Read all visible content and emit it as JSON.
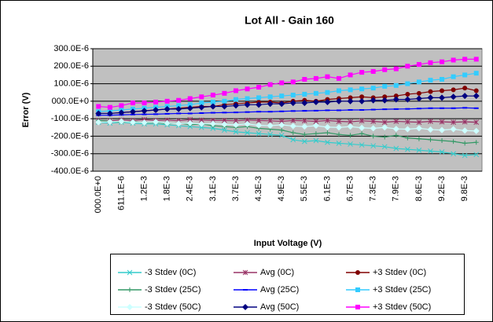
{
  "chart_data": {
    "type": "line",
    "title": "Lot All - Gain 160",
    "x_label": "Input Voltage (V)",
    "y_label": "Error (V)",
    "categories": [
      "000.0E+0",
      null,
      "611.1E-6",
      null,
      "1.2E-3",
      null,
      "1.8E-3",
      null,
      "2.4E-3",
      null,
      "3.1E-3",
      null,
      "3.7E-3",
      null,
      "4.3E-3",
      null,
      "4.9E-3",
      null,
      "5.5E-3",
      null,
      "6.1E-3",
      null,
      "6.7E-3",
      null,
      "7.3E-3",
      null,
      "7.9E-3",
      null,
      "8.6E-3",
      null,
      "9.2E-3",
      null,
      "9.8E-3",
      null
    ],
    "ylim": [
      -0.0004,
      0.0003
    ],
    "yticks": [
      {
        "value": -0.0004,
        "label": "-400.0E-6"
      },
      {
        "value": -0.0003,
        "label": "-300.0E-6"
      },
      {
        "value": -0.0002,
        "label": "-200.0E-6"
      },
      {
        "value": -0.0001,
        "label": "-100.0E-6"
      },
      {
        "value": 0,
        "label": "000.0E+0"
      },
      {
        "value": 0.0001,
        "label": "100.0E-6"
      },
      {
        "value": 0.0002,
        "label": "200.0E-6"
      },
      {
        "value": 0.0003,
        "label": "300.0E-6"
      }
    ],
    "grid": true,
    "plot_background": "#c0c0c0",
    "legend_position": "bottom",
    "series": [
      {
        "name": "-3 Stdev (0C)",
        "color": "#33cccc",
        "marker": "x",
        "values": [
          -0.00012,
          -0.000125,
          -0.00012,
          -0.000125,
          -0.00013,
          -0.00013,
          -0.000135,
          -0.00014,
          -0.000145,
          -0.00015,
          -0.000155,
          -0.000165,
          -0.000175,
          -0.00018,
          -0.000185,
          -0.00019,
          -0.000195,
          -0.00022,
          -0.00023,
          -0.000225,
          -0.000235,
          -0.00024,
          -0.000245,
          -0.00025,
          -0.000255,
          -0.00026,
          -0.00027,
          -0.000275,
          -0.00028,
          -0.000285,
          -0.00029,
          -0.0003,
          -0.00031,
          -0.000305
        ]
      },
      {
        "name": "Avg (0C)",
        "color": "#993366",
        "marker": "star",
        "values": [
          -0.00011,
          -0.000112,
          -0.000108,
          -0.00011,
          -0.000105,
          -0.00011,
          -0.000108,
          -0.000112,
          -0.000105,
          -0.000108,
          -0.00011,
          -0.00011,
          -0.000112,
          -0.000108,
          -0.00011,
          -0.000112,
          -0.000115,
          -0.00011,
          -0.000112,
          -0.000115,
          -0.00011,
          -0.000115,
          -0.000118,
          -0.000112,
          -0.000115,
          -0.00012,
          -0.000115,
          -0.000118,
          -0.00012,
          -0.000115,
          -0.000118,
          -0.00012,
          -0.000118,
          -0.00012
        ]
      },
      {
        "name": "+3 Stdev (0C)",
        "color": "#800000",
        "marker": "circle",
        "values": [
          -7e-05,
          -7e-05,
          -6.5e-05,
          -6e-05,
          -5.5e-05,
          -5e-05,
          -4.5e-05,
          -4e-05,
          -3.5e-05,
          -3e-05,
          -3e-05,
          -2e-05,
          -1.5e-05,
          -1e-05,
          -5e-06,
          -5e-06,
          -1e-05,
          0,
          5e-06,
          0,
          1e-05,
          1.5e-05,
          2e-05,
          2.5e-05,
          2e-05,
          2.5e-05,
          3e-05,
          4e-05,
          4.5e-05,
          5.5e-05,
          6e-05,
          6.5e-05,
          7.5e-05,
          6e-05
        ]
      },
      {
        "name": "-3 Stdev (25C)",
        "color": "#339966",
        "marker": "plus",
        "values": [
          -0.00011,
          -0.000115,
          -0.00012,
          -0.000115,
          -0.000125,
          -0.00012,
          -0.00013,
          -0.000125,
          -0.000135,
          -0.00013,
          -0.00014,
          -0.000145,
          -0.00015,
          -0.000145,
          -0.000155,
          -0.00016,
          -0.000165,
          -0.00018,
          -0.00019,
          -0.000185,
          -0.00018,
          -0.00019,
          -0.000195,
          -0.000185,
          -0.0002,
          -0.000205,
          -0.000195,
          -0.00021,
          -0.000215,
          -0.00022,
          -0.000225,
          -0.00023,
          -0.00024,
          -0.000235
        ]
      },
      {
        "name": "Avg (25C)",
        "color": "#0000ff",
        "marker": "dash",
        "values": [
          -8e-05,
          -8e-05,
          -7.8e-05,
          -7.6e-05,
          -7.5e-05,
          -7.4e-05,
          -7.2e-05,
          -7e-05,
          -7e-05,
          -6.8e-05,
          -6.6e-05,
          -6.5e-05,
          -6.4e-05,
          -6.2e-05,
          -6e-05,
          -6e-05,
          -5.8e-05,
          -5.6e-05,
          -5.5e-05,
          -5.4e-05,
          -5.2e-05,
          -5.2e-05,
          -5e-05,
          -5e-05,
          -4.8e-05,
          -4.6e-05,
          -4.5e-05,
          -4.4e-05,
          -4.2e-05,
          -4e-05,
          -4e-05,
          -4e-05,
          -3.8e-05,
          -4e-05
        ]
      },
      {
        "name": "+3 Stdev (25C)",
        "color": "#33ccff",
        "marker": "square",
        "values": [
          -6e-05,
          -5.5e-05,
          -5e-05,
          -4.5e-05,
          -4e-05,
          -3.5e-05,
          -3e-05,
          -2.5e-05,
          -2e-05,
          -1e-05,
          -5e-06,
          0,
          1e-05,
          1.5e-05,
          2e-05,
          2.5e-05,
          3e-05,
          3.5e-05,
          4e-05,
          4.5e-05,
          5e-05,
          6e-05,
          6.5e-05,
          7e-05,
          7.5e-05,
          8.5e-05,
          9e-05,
          0.0001,
          0.00011,
          0.00012,
          0.000125,
          0.00014,
          0.00015,
          0.00016
        ]
      },
      {
        "name": "-3 Stdev (50C)",
        "color": "#ccffff",
        "marker": "diamond",
        "values": [
          -0.00012,
          -0.000118,
          -0.000115,
          -0.00012,
          -0.000122,
          -0.000118,
          -0.000125,
          -0.000128,
          -0.000125,
          -0.00013,
          -0.000128,
          -0.000132,
          -0.000135,
          -0.00013,
          -0.000138,
          -0.00014,
          -0.000135,
          -0.000142,
          -0.000145,
          -0.00014,
          -0.000148,
          -0.00015,
          -0.000145,
          -0.000152,
          -0.000155,
          -0.00015,
          -0.000158,
          -0.00016,
          -0.000155,
          -0.000162,
          -0.000165,
          -0.00016,
          -0.000168,
          -0.00017
        ]
      },
      {
        "name": "Avg (50C)",
        "color": "#000080",
        "marker": "diamond",
        "values": [
          -7e-05,
          -7e-05,
          -6.5e-05,
          -6e-05,
          -5.5e-05,
          -5e-05,
          -4.5e-05,
          -4.5e-05,
          -4e-05,
          -3.5e-05,
          -3e-05,
          -3e-05,
          -2.5e-05,
          -2e-05,
          -2e-05,
          -1.5e-05,
          -1.5e-05,
          -1e-05,
          -1e-05,
          -5e-06,
          -5e-06,
          0,
          0,
          0,
          5e-06,
          5e-06,
          1e-05,
          1e-05,
          1.5e-05,
          2e-05,
          2e-05,
          2.5e-05,
          3e-05,
          3e-05
        ]
      },
      {
        "name": "+3 Stdev (50C)",
        "color": "#ff00ff",
        "marker": "square",
        "values": [
          -3e-05,
          -3.5e-05,
          -2.5e-05,
          -1e-05,
          -1e-05,
          -5e-06,
          0,
          5e-06,
          1.5e-05,
          2.5e-05,
          3.5e-05,
          4.5e-05,
          6e-05,
          7e-05,
          8e-05,
          9.5e-05,
          0.000105,
          0.00011,
          0.000125,
          0.00013,
          0.00014,
          0.00013,
          0.00015,
          0.000165,
          0.00017,
          0.00018,
          0.000185,
          0.0002,
          0.00021,
          0.00022,
          0.000225,
          0.000235,
          0.00024,
          0.00024
        ]
      }
    ]
  }
}
